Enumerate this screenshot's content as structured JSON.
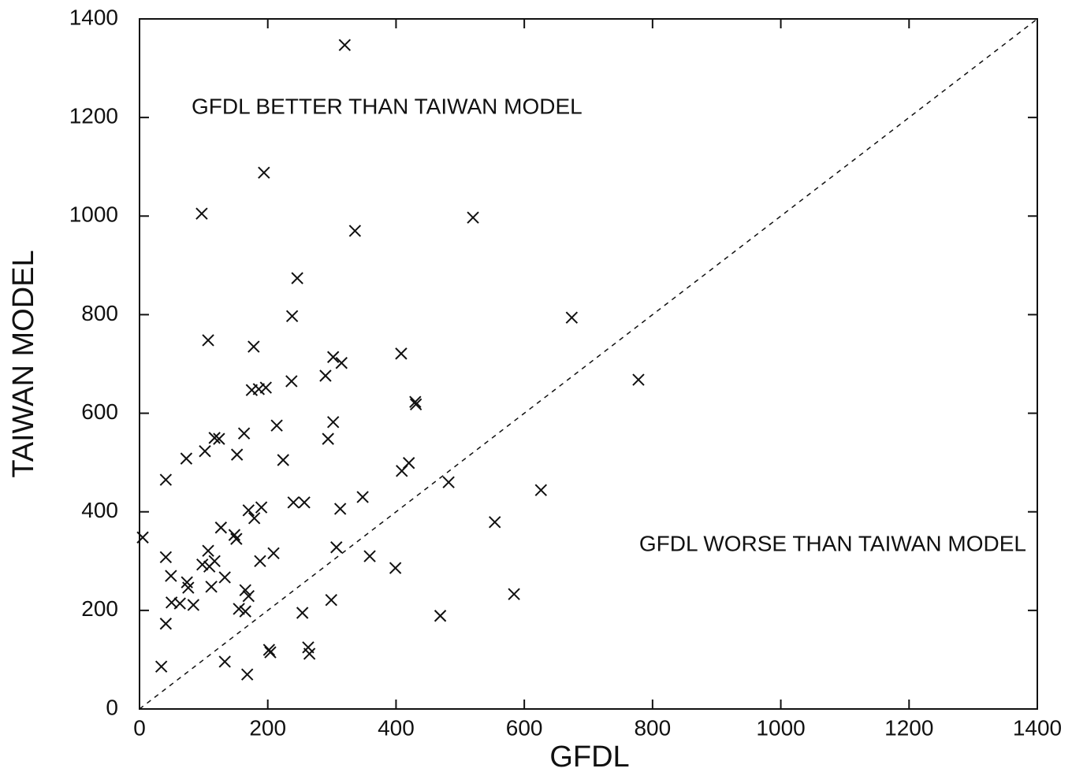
{
  "chart_data": {
    "type": "scatter",
    "xlabel": "GFDL",
    "ylabel": "TAIWAN MODEL",
    "annotations": [
      "GFDL BETTER THAN TAIWAN MODEL",
      "GFDL WORSE THAN TAIWAN MODEL"
    ],
    "xlim": [
      0,
      1400
    ],
    "ylim": [
      0,
      1400
    ],
    "xticks": [
      0,
      200,
      400,
      600,
      800,
      1000,
      1200,
      1400
    ],
    "yticks": [
      0,
      200,
      400,
      600,
      800,
      1000,
      1200,
      1400
    ],
    "color": "#111111",
    "x": [
      320,
      194,
      97,
      520,
      336,
      246,
      238,
      674,
      107,
      178,
      408,
      302,
      315,
      290,
      237,
      778,
      175,
      186,
      197,
      430,
      431,
      302,
      214,
      163,
      117,
      124,
      294,
      102,
      152,
      73,
      224,
      420,
      409,
      41,
      482,
      626,
      348,
      240,
      257,
      190,
      170,
      313,
      554,
      179,
      127,
      5,
      148,
      151,
      107,
      307,
      209,
      41,
      359,
      117,
      188,
      98,
      109,
      399,
      49,
      133,
      74,
      76,
      112,
      165,
      170,
      584,
      50,
      63,
      84,
      299,
      155,
      165,
      254,
      469,
      41,
      202,
      204,
      263,
      265,
      133,
      34,
      168
    ],
    "y": [
      1347,
      1088,
      1005,
      997,
      970,
      874,
      797,
      794,
      748,
      735,
      721,
      714,
      702,
      676,
      665,
      668,
      647,
      649,
      652,
      623,
      618,
      582,
      575,
      559,
      550,
      548,
      548,
      523,
      516,
      508,
      505,
      499,
      483,
      465,
      460,
      444,
      430,
      419,
      419,
      409,
      403,
      406,
      379,
      387,
      368,
      348,
      353,
      345,
      321,
      328,
      316,
      308,
      310,
      300,
      300,
      293,
      289,
      286,
      270,
      267,
      257,
      246,
      248,
      241,
      229,
      233,
      216,
      214,
      211,
      221,
      203,
      198,
      195,
      189,
      173,
      120,
      115,
      125,
      112,
      96,
      86,
      70
    ]
  }
}
